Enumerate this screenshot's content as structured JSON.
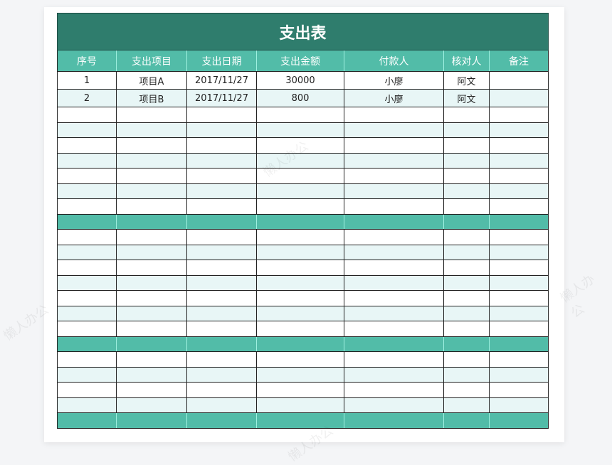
{
  "title": "支出表",
  "columns": [
    "序号",
    "支出项目",
    "支出日期",
    "支出金额",
    "付款人",
    "核对人",
    "备注"
  ],
  "rows": [
    {
      "style": "white",
      "cells": [
        "1",
        "项目A",
        "2017/11/27",
        "30000",
        "小廖",
        "阿文",
        ""
      ]
    },
    {
      "style": "light",
      "cells": [
        "2",
        "项目B",
        "2017/11/27",
        "800",
        "小廖",
        "阿文",
        ""
      ]
    },
    {
      "style": "white",
      "cells": [
        "",
        "",
        "",
        "",
        "",
        "",
        ""
      ]
    },
    {
      "style": "light",
      "cells": [
        "",
        "",
        "",
        "",
        "",
        "",
        ""
      ]
    },
    {
      "style": "white",
      "cells": [
        "",
        "",
        "",
        "",
        "",
        "",
        ""
      ]
    },
    {
      "style": "light",
      "cells": [
        "",
        "",
        "",
        "",
        "",
        "",
        ""
      ]
    },
    {
      "style": "white",
      "cells": [
        "",
        "",
        "",
        "",
        "",
        "",
        ""
      ]
    },
    {
      "style": "light",
      "cells": [
        "",
        "",
        "",
        "",
        "",
        "",
        ""
      ]
    },
    {
      "style": "white",
      "cells": [
        "",
        "",
        "",
        "",
        "",
        "",
        ""
      ]
    },
    {
      "style": "teal",
      "cells": [
        "",
        "",
        "",
        "",
        "",
        "",
        ""
      ]
    },
    {
      "style": "white",
      "cells": [
        "",
        "",
        "",
        "",
        "",
        "",
        ""
      ]
    },
    {
      "style": "light",
      "cells": [
        "",
        "",
        "",
        "",
        "",
        "",
        ""
      ]
    },
    {
      "style": "white",
      "cells": [
        "",
        "",
        "",
        "",
        "",
        "",
        ""
      ]
    },
    {
      "style": "light",
      "cells": [
        "",
        "",
        "",
        "",
        "",
        "",
        ""
      ]
    },
    {
      "style": "white",
      "cells": [
        "",
        "",
        "",
        "",
        "",
        "",
        ""
      ]
    },
    {
      "style": "light",
      "cells": [
        "",
        "",
        "",
        "",
        "",
        "",
        ""
      ]
    },
    {
      "style": "white",
      "cells": [
        "",
        "",
        "",
        "",
        "",
        "",
        ""
      ]
    },
    {
      "style": "teal",
      "cells": [
        "",
        "",
        "",
        "",
        "",
        "",
        ""
      ]
    },
    {
      "style": "white",
      "cells": [
        "",
        "",
        "",
        "",
        "",
        "",
        ""
      ]
    },
    {
      "style": "light",
      "cells": [
        "",
        "",
        "",
        "",
        "",
        "",
        ""
      ]
    },
    {
      "style": "white",
      "cells": [
        "",
        "",
        "",
        "",
        "",
        "",
        ""
      ]
    },
    {
      "style": "light",
      "cells": [
        "",
        "",
        "",
        "",
        "",
        "",
        ""
      ]
    },
    {
      "style": "teal",
      "cells": [
        "",
        "",
        "",
        "",
        "",
        "",
        ""
      ]
    }
  ],
  "watermark": "懒人办公",
  "colors": {
    "title_bg": "#2f7d6d",
    "header_bg": "#52bca8",
    "row_alt": "#e8f6f6"
  }
}
